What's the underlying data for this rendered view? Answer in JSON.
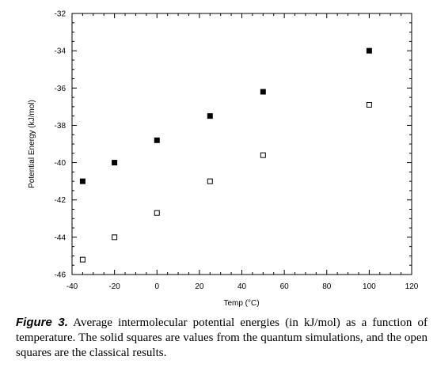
{
  "chart_data": {
    "type": "scatter",
    "xlabel": "Temp (°C)",
    "ylabel": "Potential Energy (kJ/mol)",
    "xlim": [
      -40,
      120
    ],
    "ylim": [
      -46,
      -32
    ],
    "x_ticks": [
      -40,
      -20,
      0,
      20,
      40,
      60,
      80,
      100,
      120
    ],
    "y_ticks": [
      -32,
      -34,
      -36,
      -38,
      -40,
      -42,
      -44,
      -46
    ],
    "series": [
      {
        "marker": "filled-square",
        "color": "#000000",
        "x": [
          -35,
          -20,
          0,
          25,
          50,
          100
        ],
        "y": [
          -41.0,
          -40.0,
          -38.8,
          -37.5,
          -36.2,
          -34.0
        ]
      },
      {
        "marker": "open-square",
        "color": "#000000",
        "x": [
          -35,
          -20,
          0,
          25,
          50,
          100
        ],
        "y": [
          -45.2,
          -44.0,
          -42.7,
          -41.0,
          -39.6,
          -36.9
        ]
      }
    ]
  },
  "caption": {
    "label": "Figure 3.",
    "text": " Average intermolecular potential energies (in kJ/mol) as a function of temperature. The solid squares are values from the quantum simulations, and the open squares are the classical results."
  }
}
